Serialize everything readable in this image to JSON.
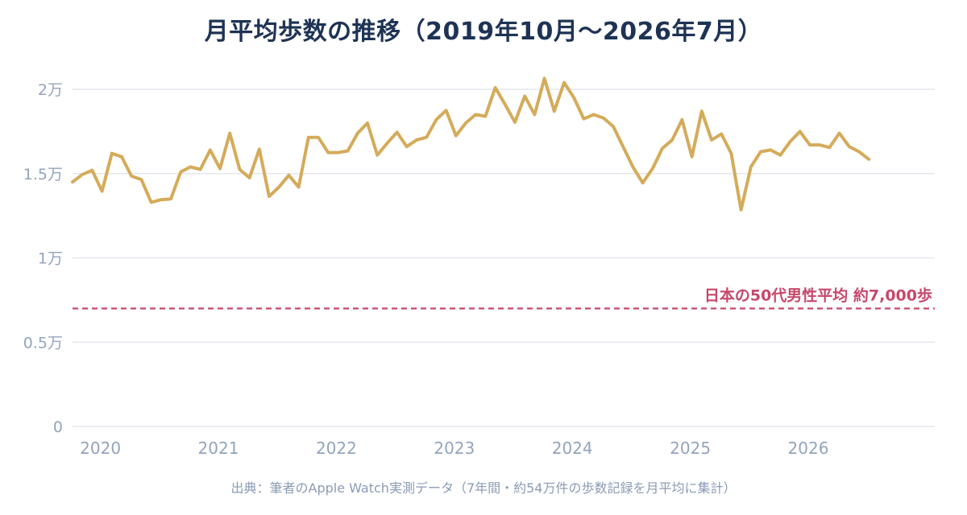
{
  "title": "月平均歩数の推移（2019年10月〜2026年7月）",
  "caption": "出典：筆者のApple Watch実測データ（7年間・約54万件の歩数記録を月平均に集計）",
  "colors": {
    "line": "#d4ab5a",
    "reference": "#c6486a",
    "grid": "#e3e7ee",
    "ticks": "#93a4bd",
    "title": "#1e3354"
  },
  "chart_data": {
    "type": "line",
    "title": "月平均歩数の推移（2019年10月〜2026年7月）",
    "xlabel": "",
    "ylabel": "",
    "ylim": [
      0,
      20000
    ],
    "grid": true,
    "y_ticks": [
      {
        "value": 0,
        "label": "0"
      },
      {
        "value": 5000,
        "label": "0.5万"
      },
      {
        "value": 10000,
        "label": "1万"
      },
      {
        "value": 15000,
        "label": "1.5万"
      },
      {
        "value": 20000,
        "label": "2万"
      }
    ],
    "x_ticks": [
      "2020",
      "2021",
      "2022",
      "2023",
      "2024",
      "2025",
      "2026"
    ],
    "start": "2019-10",
    "series": [
      {
        "values": [
          14500,
          14950,
          15200,
          13950,
          16200,
          16000,
          14850,
          14650,
          13300,
          13450,
          13500,
          15100,
          15400,
          15250,
          16400,
          15300,
          17400,
          15250,
          14750,
          16450,
          13650,
          14200,
          14900,
          14200,
          17150,
          17150,
          16250,
          16250,
          16350,
          17400,
          18000,
          16100,
          16800,
          17450,
          16600,
          17000,
          17150,
          18200,
          18750,
          17250,
          18000,
          18500,
          18400,
          20100,
          19100,
          18050,
          19600,
          18500,
          20650,
          18700,
          20400,
          19500,
          18250,
          18500,
          18300,
          17800,
          16600,
          15400,
          14450,
          15300,
          16500,
          17000,
          18200,
          16000,
          18700,
          17000,
          17350,
          16200,
          12850,
          15400,
          16300,
          16400,
          16100,
          16900,
          17500,
          16700,
          16700,
          16550,
          17400,
          16600,
          16300,
          15850
        ]
      }
    ],
    "reference_line": {
      "value": 7000,
      "label": "日本の50代男性平均 約7,000歩"
    }
  }
}
